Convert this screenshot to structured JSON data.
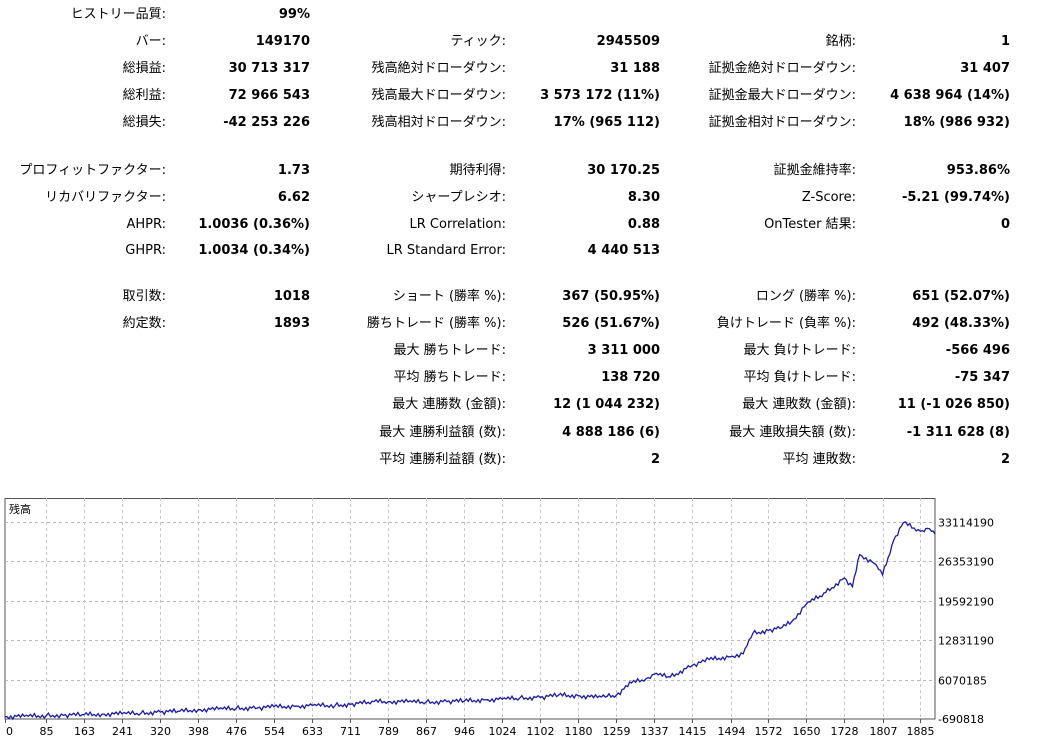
{
  "stats": [
    {
      "id": "history-quality",
      "label": "ヒストリー品質:",
      "value": "99%",
      "col": 0,
      "row": 0
    },
    {
      "id": "bars",
      "label": "バー:",
      "value": "149170",
      "col": 0,
      "row": 1
    },
    {
      "id": "ticks",
      "label": "ティック:",
      "value": "2945509",
      "col": 1,
      "row": 1
    },
    {
      "id": "symbols",
      "label": "銘柄:",
      "value": "1",
      "col": 2,
      "row": 1
    },
    {
      "id": "total-net-profit",
      "label": "総損益:",
      "value": "30 713 317",
      "col": 0,
      "row": 2
    },
    {
      "id": "balance-dd-absolute",
      "label": "残高絶対ドローダウン:",
      "value": "31 188",
      "col": 1,
      "row": 2
    },
    {
      "id": "equity-dd-absolute",
      "label": "証拠金絶対ドローダウン:",
      "value": "31 407",
      "col": 2,
      "row": 2
    },
    {
      "id": "gross-profit",
      "label": "総利益:",
      "value": "72 966 543",
      "col": 0,
      "row": 3
    },
    {
      "id": "balance-dd-maximal",
      "label": "残高最大ドローダウン:",
      "value": "3 573 172 (11%)",
      "col": 1,
      "row": 3
    },
    {
      "id": "equity-dd-maximal",
      "label": "証拠金最大ドローダウン:",
      "value": "4 638 964 (14%)",
      "col": 2,
      "row": 3
    },
    {
      "id": "gross-loss",
      "label": "総損失:",
      "value": "-42 253 226",
      "col": 0,
      "row": 4
    },
    {
      "id": "balance-dd-relative",
      "label": "残高相対ドローダウン:",
      "value": "17% (965 112)",
      "col": 1,
      "row": 4
    },
    {
      "id": "equity-dd-relative",
      "label": "証拠金相対ドローダウン:",
      "value": "18% (986 932)",
      "col": 2,
      "row": 4
    },
    {
      "id": "profit-factor",
      "label": "プロフィットファクター:",
      "value": "1.73",
      "col": 0,
      "row": 5
    },
    {
      "id": "expected-payoff",
      "label": "期待利得:",
      "value": "30 170.25",
      "col": 1,
      "row": 5
    },
    {
      "id": "margin-level",
      "label": "証拠金維持率:",
      "value": "953.86%",
      "col": 2,
      "row": 5
    },
    {
      "id": "recovery-factor",
      "label": "リカバリファクター:",
      "value": "6.62",
      "col": 0,
      "row": 6
    },
    {
      "id": "sharpe-ratio",
      "label": "シャープレシオ:",
      "value": "8.30",
      "col": 1,
      "row": 6
    },
    {
      "id": "z-score",
      "label": "Z-Score:",
      "value": "-5.21 (99.74%)",
      "col": 2,
      "row": 6
    },
    {
      "id": "ahpr",
      "label": "AHPR:",
      "value": "1.0036 (0.36%)",
      "col": 0,
      "row": 7
    },
    {
      "id": "lr-correlation",
      "label": "LR Correlation:",
      "value": "0.88",
      "col": 1,
      "row": 7
    },
    {
      "id": "ontester-result",
      "label": "OnTester 結果:",
      "value": "0",
      "col": 2,
      "row": 7
    },
    {
      "id": "ghpr",
      "label": "GHPR:",
      "value": "1.0034 (0.34%)",
      "col": 0,
      "row": 8
    },
    {
      "id": "lr-standard-error",
      "label": "LR Standard Error:",
      "value": "4 440 513",
      "col": 1,
      "row": 8
    },
    {
      "id": "total-trades",
      "label": "取引数:",
      "value": "1018",
      "col": 0,
      "row": 9
    },
    {
      "id": "short-trades",
      "label": "ショート (勝率 %):",
      "value": "367 (50.95%)",
      "col": 1,
      "row": 9
    },
    {
      "id": "long-trades",
      "label": "ロング (勝率 %):",
      "value": "651 (52.07%)",
      "col": 2,
      "row": 9
    },
    {
      "id": "total-deals",
      "label": "約定数:",
      "value": "1893",
      "col": 0,
      "row": 10
    },
    {
      "id": "profit-trades",
      "label": "勝ちトレード (勝率 %):",
      "value": "526 (51.67%)",
      "col": 1,
      "row": 10
    },
    {
      "id": "loss-trades",
      "label": "負けトレード (負率 %):",
      "value": "492 (48.33%)",
      "col": 2,
      "row": 10
    },
    {
      "id": "largest-profit-trade",
      "label": "最大 勝ちトレード:",
      "value": "3 311 000",
      "col": 1,
      "row": 11
    },
    {
      "id": "largest-loss-trade",
      "label": "最大 負けトレード:",
      "value": "-566 496",
      "col": 2,
      "row": 11
    },
    {
      "id": "average-profit-trade",
      "label": "平均 勝ちトレード:",
      "value": "138 720",
      "col": 1,
      "row": 12
    },
    {
      "id": "average-loss-trade",
      "label": "平均 負けトレード:",
      "value": "-75 347",
      "col": 2,
      "row": 12
    },
    {
      "id": "max-consecutive-wins",
      "label": "最大 連勝数 (金額):",
      "value": "12 (1 044 232)",
      "col": 1,
      "row": 13
    },
    {
      "id": "max-consecutive-losses",
      "label": "最大 連敗数 (金額):",
      "value": "11 (-1 026 850)",
      "col": 2,
      "row": 13
    },
    {
      "id": "maximal-consecutive-profit",
      "label": "最大 連勝利益額 (数):",
      "value": "4 888 186 (6)",
      "col": 1,
      "row": 14
    },
    {
      "id": "maximal-consecutive-loss",
      "label": "最大 連敗損失額 (数):",
      "value": "-1 311 628 (8)",
      "col": 2,
      "row": 14
    },
    {
      "id": "average-consecutive-wins",
      "label": "平均 連勝利益額 (数):",
      "value": "2",
      "col": 1,
      "row": 15
    },
    {
      "id": "average-consecutive-losses",
      "label": "平均 連敗数:",
      "value": "2",
      "col": 2,
      "row": 15
    }
  ],
  "chart_data": {
    "type": "line",
    "title": "残高",
    "series": [
      {
        "name": "残高",
        "color": "#1a1aa6",
        "x": [
          0,
          40,
          85,
          120,
          163,
          200,
          241,
          280,
          320,
          360,
          398,
          440,
          476,
          520,
          554,
          600,
          633,
          680,
          711,
          760,
          789,
          830,
          867,
          910,
          946,
          990,
          1024,
          1060,
          1102,
          1140,
          1180,
          1220,
          1240,
          1259,
          1290,
          1320,
          1337,
          1370,
          1415,
          1450,
          1494,
          1520,
          1540,
          1572,
          1600,
          1620,
          1650,
          1690,
          1728,
          1745,
          1760,
          1790,
          1807,
          1830,
          1850,
          1885,
          1900,
          1915
        ],
        "y": [
          -300000,
          -250000,
          -100000,
          -50000,
          50000,
          150000,
          200000,
          300000,
          500000,
          650000,
          900000,
          1000000,
          1150000,
          1200000,
          1400000,
          1500000,
          1600000,
          1650000,
          1800000,
          2300000,
          2300000,
          2250000,
          2200000,
          2300000,
          2400000,
          2600000,
          2700000,
          2900000,
          3000000,
          3400000,
          3300000,
          3000000,
          3200000,
          3400000,
          5500000,
          6200000,
          7000000,
          6500000,
          8500000,
          9500000,
          10000000,
          10500000,
          14000000,
          14500000,
          15000000,
          16000000,
          19000000,
          21000000,
          23500000,
          22000000,
          27500000,
          26000000,
          24000000,
          30000000,
          33000000,
          31500000,
          32000000,
          31000000
        ]
      }
    ],
    "xticks": [
      "0",
      "85",
      "163",
      "241",
      "320",
      "398",
      "476",
      "554",
      "633",
      "711",
      "789",
      "867",
      "946",
      "1024",
      "1102",
      "1180",
      "1259",
      "1337",
      "1415",
      "1494",
      "1572",
      "1650",
      "1728",
      "1807",
      "1885"
    ],
    "yticks": [
      {
        "label": "33114190",
        "value": 33114190
      },
      {
        "label": "26353190",
        "value": 26353190
      },
      {
        "label": "19592190",
        "value": 19592190
      },
      {
        "label": "12831190",
        "value": 12831190
      },
      {
        "label": "6070185",
        "value": 6070185
      },
      {
        "label": "-690818",
        "value": -690818
      }
    ],
    "xlim": [
      0,
      1915
    ],
    "ylim": [
      -690818,
      35500000
    ],
    "grid": true
  }
}
